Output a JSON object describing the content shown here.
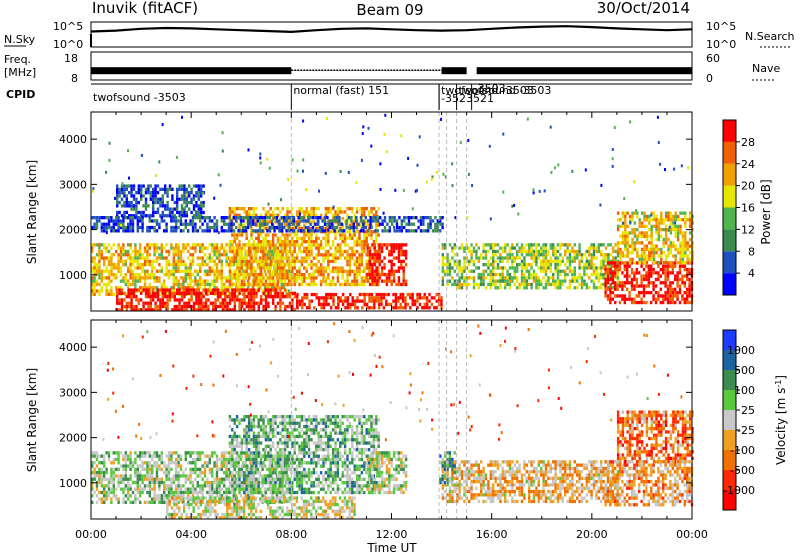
{
  "header": {
    "station": "Inuvik (fitACF)",
    "beam": "Beam 09",
    "date": "30/Oct/2014"
  },
  "colors": {
    "power_scale": [
      "#0000ff",
      "#2050c0",
      "#3c8a50",
      "#50b450",
      "#e6e600",
      "#f0a000",
      "#f06000",
      "#ff0000"
    ],
    "velocity_scale": [
      "#1e3cff",
      "#1a64a0",
      "#3c8c50",
      "#5ac83c",
      "#c8c8c8",
      "#f0a020",
      "#f07000",
      "#ff2800",
      "#ff0000"
    ],
    "ground_scatter": "#c0c0c0"
  },
  "chart_data": [
    {
      "type": "line",
      "name": "noise-panel",
      "left_label": "N.Sky",
      "right_label": "N.Search",
      "left_ticks": [
        "10^5",
        "10^0"
      ],
      "right_ticks": [
        "10^5",
        "10^0"
      ],
      "x_range_hours": [
        0,
        24
      ],
      "sky_noise_log": [
        [
          0,
          3.3
        ],
        [
          1,
          3.5
        ],
        [
          2,
          3.9
        ],
        [
          3,
          4.1
        ],
        [
          4,
          4.0
        ],
        [
          5,
          3.8
        ],
        [
          6,
          3.6
        ],
        [
          7,
          3.4
        ],
        [
          8,
          3.2
        ],
        [
          9,
          3.6
        ],
        [
          10,
          3.9
        ],
        [
          11,
          4.0
        ],
        [
          12,
          3.8
        ],
        [
          13,
          3.6
        ],
        [
          14,
          3.5
        ],
        [
          15,
          3.6
        ],
        [
          16,
          3.9
        ],
        [
          17,
          4.2
        ],
        [
          18,
          4.4
        ],
        [
          19,
          4.5
        ],
        [
          20,
          4.3
        ],
        [
          21,
          4.0
        ],
        [
          22,
          3.8
        ],
        [
          23,
          3.6
        ],
        [
          24,
          3.8
        ]
      ]
    },
    {
      "type": "line",
      "name": "frequency-panel",
      "left_label": "Freq.",
      "left_unit": "[MHz]",
      "left_ticks": [
        "18",
        "8"
      ],
      "right_label": "Nave",
      "right_ticks": [
        "60",
        "0"
      ],
      "freq_mhz": 11,
      "nave_gaps_hours": [
        [
          8.0,
          14.0
        ],
        [
          15.0,
          15.4
        ]
      ]
    },
    {
      "type": "table",
      "name": "cpid-panel",
      "label": "CPID",
      "modes": [
        {
          "start": 0.0,
          "text": "twofsound -3503"
        },
        {
          "start": 8.0,
          "text": "normal (fast) 151"
        },
        {
          "start": 13.9,
          "text": "twofsound -3503"
        },
        {
          "start": 13.9,
          "text": "-3523521"
        },
        {
          "start": 14.6,
          "text": "twofsound -3503"
        },
        {
          "start": 15.2,
          "text": "-3503"
        }
      ]
    },
    {
      "type": "heatmap",
      "name": "power-panel",
      "ylabel": "Slant Range [km]",
      "ylim": [
        200,
        4600
      ],
      "yticks": [
        1000,
        2000,
        3000,
        4000
      ],
      "colorbar_label": "Power [dB]",
      "colorbar_ticks": [
        "28",
        "24",
        "20",
        "16",
        "12",
        "8",
        "4"
      ],
      "value_range_db": [
        0,
        32
      ],
      "hour_range": [
        0,
        24
      ],
      "scatter_bands": [
        {
          "h0": 0.0,
          "h1": 8.0,
          "r0": 600,
          "r1": 1700,
          "val": 20
        },
        {
          "h0": 1.0,
          "h1": 8.2,
          "r0": 250,
          "r1": 700,
          "val": 30
        },
        {
          "h0": 8.2,
          "h1": 14.0,
          "r0": 250,
          "r1": 600,
          "val": 30
        },
        {
          "h0": 5.5,
          "h1": 11.5,
          "r0": 800,
          "r1": 2500,
          "val": 22
        },
        {
          "h0": 11.0,
          "h1": 12.6,
          "r0": 800,
          "r1": 1700,
          "val": 30
        },
        {
          "h0": 14.0,
          "h1": 21.0,
          "r0": 700,
          "r1": 1700,
          "val": 16
        },
        {
          "h0": 20.5,
          "h1": 24.0,
          "r0": 400,
          "r1": 1300,
          "val": 30
        },
        {
          "h0": 21.0,
          "h1": 24.0,
          "r0": 1300,
          "r1": 2400,
          "val": 20
        },
        {
          "h0": 1.0,
          "h1": 4.5,
          "r0": 2300,
          "r1": 3000,
          "val": 6
        },
        {
          "h0": 0.0,
          "h1": 14.0,
          "r0": 2000,
          "r1": 2300,
          "val": 6
        }
      ]
    },
    {
      "type": "heatmap",
      "name": "velocity-panel",
      "ylabel": "Slant Range [km]",
      "ylim": [
        200,
        4600
      ],
      "yticks": [
        1000,
        2000,
        3000,
        4000
      ],
      "xlabel": "Time UT",
      "xticks": [
        "00:00",
        "04:00",
        "08:00",
        "12:00",
        "16:00",
        "20:00",
        "00:00"
      ],
      "colorbar_label": "Velocity [m s",
      "colorbar_label_sup": "-1",
      "colorbar_label_end": "]",
      "colorbar_ticks": [
        "1000",
        "500",
        "100",
        "25",
        "-25",
        "-100",
        "-500",
        "-1000"
      ],
      "value_range_ms": [
        -1000,
        1000
      ],
      "hour_range": [
        0,
        24
      ],
      "scatter_bands": [
        {
          "h0": 0.0,
          "h1": 8.0,
          "r0": 600,
          "r1": 1700,
          "val": 150
        },
        {
          "h0": 3.0,
          "h1": 10.5,
          "r0": 250,
          "r1": 700,
          "val": 0
        },
        {
          "h0": 5.5,
          "h1": 11.5,
          "r0": 800,
          "r1": 2500,
          "val": 300
        },
        {
          "h0": 11.0,
          "h1": 12.6,
          "r0": 800,
          "r1": 1700,
          "val": 100
        },
        {
          "h0": 14.0,
          "h1": 21.0,
          "r0": 600,
          "r1": 1500,
          "val": -200
        },
        {
          "h0": 20.5,
          "h1": 24.0,
          "r0": 500,
          "r1": 1500,
          "val": -300
        },
        {
          "h0": 21.0,
          "h1": 24.0,
          "r0": 1500,
          "r1": 2600,
          "val": -500
        },
        {
          "h0": 13.9,
          "h1": 14.5,
          "r0": 1000,
          "r1": 1700,
          "val": 500
        }
      ]
    }
  ]
}
